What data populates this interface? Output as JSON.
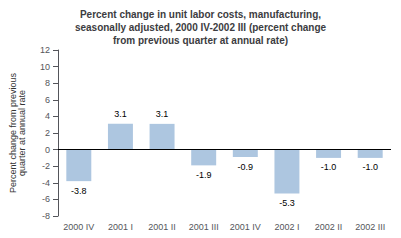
{
  "chart_data": {
    "type": "bar",
    "title": "Percent change in unit labor costs, manufacturing,\nseasonally adjusted, 2000 IV-2002 III (percent change\nfrom previous quarter at annual rate)",
    "ylabel": "Percent change from previous\nquarter at annual rate",
    "categories": [
      "2000 IV",
      "2001 I",
      "2001 II",
      "2001 III",
      "2001 IV",
      "2002 I",
      "2002 II",
      "2002 III"
    ],
    "values": [
      -3.8,
      3.1,
      3.1,
      -1.9,
      -0.9,
      -5.3,
      -1.0,
      -1.0
    ],
    "value_labels": [
      "-3.8",
      "3.1",
      "3.1",
      "-1.9",
      "-0.9",
      "-5.3",
      "-1.0",
      "-1.0"
    ],
    "color": "#adc6e0",
    "ylim": [
      -8,
      12
    ],
    "yticks": [
      -8,
      -6,
      -4,
      -2,
      0,
      2,
      4,
      6,
      8,
      10,
      12
    ],
    "grid": false,
    "data_labels": true
  }
}
